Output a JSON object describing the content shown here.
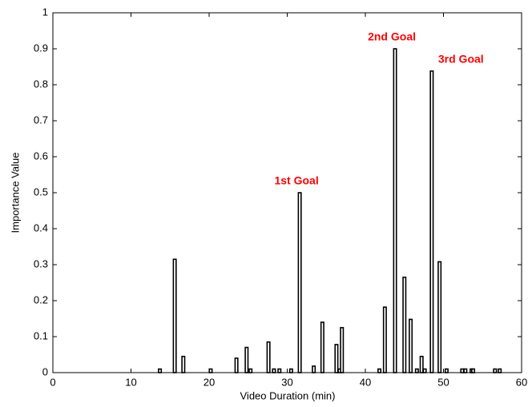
{
  "chart_data": {
    "type": "bar",
    "xlabel": "Video Duration (min)",
    "ylabel": "Importance Value",
    "x": [
      13.7,
      15.6,
      16.7,
      20.2,
      23.5,
      24.8,
      25.3,
      27.6,
      28.3,
      29.0,
      30.5,
      31.6,
      33.4,
      34.5,
      36.3,
      36.7,
      37.0,
      41.8,
      42.5,
      43.8,
      45.0,
      45.8,
      46.6,
      47.2,
      47.6,
      48.5,
      49.5,
      50.4,
      52.4,
      52.8,
      53.6,
      53.8,
      56.6,
      57.2
    ],
    "values": [
      0.01,
      0.315,
      0.045,
      0.01,
      0.04,
      0.07,
      0.01,
      0.085,
      0.01,
      0.01,
      0.01,
      0.5,
      0.018,
      0.14,
      0.078,
      0.01,
      0.125,
      0.01,
      0.182,
      0.9,
      0.265,
      0.148,
      0.01,
      0.045,
      0.01,
      0.838,
      0.308,
      0.01,
      0.01,
      0.01,
      0.01,
      0.01,
      0.01,
      0.01
    ],
    "color": "#000000",
    "xlim": [
      0,
      60
    ],
    "xticks": [
      0,
      10,
      20,
      30,
      40,
      50,
      60
    ],
    "ylim": [
      0,
      1
    ],
    "yticks": [
      0,
      0.1,
      0.2,
      0.3,
      0.4,
      0.5,
      0.6,
      0.7,
      0.8,
      0.9,
      1
    ],
    "annotation_color": "#ff0000",
    "annotations": [
      {
        "text": "1st Goal",
        "x": 31.6,
        "y": 0.5
      },
      {
        "text": "2nd Goal",
        "x": 43.8,
        "y": 0.9
      },
      {
        "text": "3rd Goal",
        "x": 48.5,
        "y": 0.838
      }
    ]
  }
}
